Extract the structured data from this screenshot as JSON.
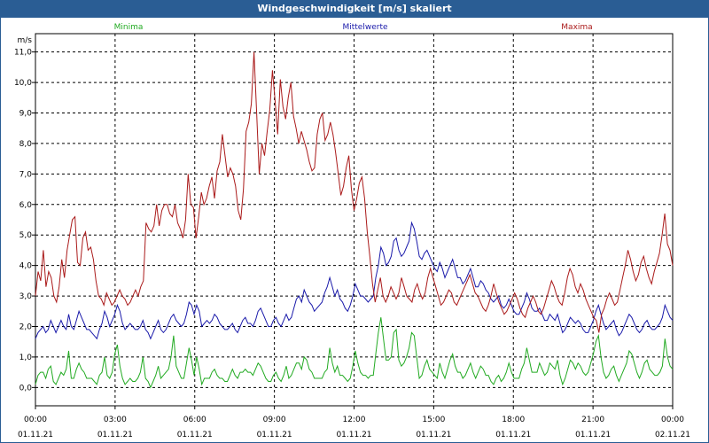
{
  "window": {
    "title": "Windgeschwindigkeit [m/s] skaliert"
  },
  "chart_data": {
    "type": "line",
    "title": "Windgeschwindigkeit [m/s] skaliert",
    "ylabel": "m/s",
    "ylim": [
      -0.6,
      11.6
    ],
    "yticks": [
      "0,0",
      "1,0",
      "2,0",
      "3,0",
      "4,0",
      "5,0",
      "6,0",
      "7,0",
      "8,0",
      "9,0",
      "10,0",
      "11,0"
    ],
    "xticks": [
      {
        "time": "00:00",
        "date": "01.11.21"
      },
      {
        "time": "03:00",
        "date": "01.11.21"
      },
      {
        "time": "06:00",
        "date": "01.11.21"
      },
      {
        "time": "09:00",
        "date": "01.11.21"
      },
      {
        "time": "12:00",
        "date": "01.11.21"
      },
      {
        "time": "15:00",
        "date": "01.11.21"
      },
      {
        "time": "18:00",
        "date": "01.11.21"
      },
      {
        "time": "21:00",
        "date": "01.11.21"
      },
      {
        "time": "00:00",
        "date": "02.11.21"
      }
    ],
    "grid": true,
    "legend_position": "top",
    "series": [
      {
        "name": "Minima",
        "color": "#22aa22",
        "values": [
          0.1,
          0.4,
          0.5,
          0.5,
          0.3,
          0.6,
          0.7,
          0.2,
          0.1,
          0.3,
          0.5,
          0.4,
          0.6,
          1.2,
          0.3,
          0.3,
          0.6,
          0.8,
          0.6,
          0.5,
          0.3,
          0.3,
          0.3,
          0.2,
          0.1,
          0.4,
          0.5,
          1.0,
          0.4,
          0.3,
          0.5,
          1.1,
          1.4,
          0.7,
          0.3,
          0.1,
          0.2,
          0.3,
          0.2,
          0.2,
          0.3,
          0.5,
          1.0,
          0.3,
          0.2,
          0.0,
          0.2,
          0.4,
          0.7,
          0.3,
          0.4,
          0.5,
          0.6,
          1.0,
          1.7,
          0.7,
          0.5,
          0.3,
          0.3,
          0.8,
          1.3,
          0.9,
          0.4,
          1.0,
          0.6,
          0.1,
          0.3,
          0.3,
          0.3,
          0.5,
          0.6,
          0.4,
          0.3,
          0.3,
          0.2,
          0.2,
          0.4,
          0.6,
          0.4,
          0.3,
          0.5,
          0.5,
          0.6,
          0.5,
          0.5,
          0.4,
          0.6,
          0.8,
          0.7,
          0.5,
          0.3,
          0.2,
          0.2,
          0.4,
          0.5,
          0.3,
          0.2,
          0.4,
          0.7,
          0.3,
          0.4,
          0.6,
          0.8,
          0.8,
          0.6,
          1.0,
          0.9,
          0.6,
          0.5,
          0.3,
          0.3,
          0.3,
          0.3,
          0.5,
          0.6,
          1.3,
          0.8,
          0.5,
          0.7,
          0.4,
          0.4,
          0.3,
          0.2,
          0.3,
          0.7,
          1.2,
          0.8,
          0.5,
          0.4,
          0.4,
          0.3,
          0.4,
          0.4,
          1.1,
          1.8,
          2.3,
          1.6,
          0.9,
          0.9,
          1.0,
          1.8,
          1.9,
          0.9,
          0.7,
          0.8,
          1.0,
          1.3,
          1.8,
          1.7,
          1.0,
          0.3,
          0.4,
          0.7,
          0.9,
          0.6,
          0.5,
          0.4,
          0.3,
          0.8,
          0.5,
          0.3,
          0.6,
          0.9,
          1.1,
          0.7,
          0.5,
          0.5,
          0.3,
          0.4,
          0.6,
          0.8,
          0.5,
          0.3,
          0.5,
          0.7,
          0.6,
          0.4,
          0.4,
          0.2,
          0.1,
          0.3,
          0.4,
          0.2,
          0.3,
          0.5,
          0.8,
          0.5,
          0.3,
          0.3,
          0.3,
          0.6,
          0.8,
          1.3,
          0.9,
          0.5,
          0.5,
          0.5,
          0.8,
          0.6,
          0.4,
          0.5,
          0.8,
          0.7,
          0.6,
          0.9,
          0.4,
          0.1,
          0.3,
          0.6,
          0.9,
          0.8,
          0.6,
          0.8,
          0.7,
          0.5,
          0.4,
          0.5,
          0.8,
          1.1,
          1.5,
          1.7,
          1.0,
          0.5,
          0.3,
          0.4,
          0.6,
          0.7,
          0.4,
          0.2,
          0.4,
          0.6,
          0.8,
          1.2,
          1.1,
          0.8,
          0.5,
          0.3,
          0.5,
          0.8,
          0.9,
          0.6,
          0.5,
          0.4,
          0.4,
          0.5,
          0.7,
          1.6,
          1.0,
          0.7,
          0.6
        ]
      },
      {
        "name": "Mittelwerte",
        "color": "#1a1aaa",
        "values": [
          1.6,
          1.8,
          1.9,
          2.0,
          1.8,
          1.9,
          2.2,
          2.0,
          1.8,
          2.0,
          2.2,
          2.0,
          1.9,
          2.4,
          2.0,
          1.9,
          2.2,
          2.5,
          2.3,
          2.1,
          1.9,
          1.9,
          1.8,
          1.7,
          1.6,
          1.9,
          2.1,
          2.5,
          2.3,
          2.0,
          2.2,
          2.4,
          2.7,
          2.5,
          2.1,
          1.9,
          2.0,
          2.1,
          2.0,
          1.9,
          1.9,
          2.0,
          2.2,
          1.9,
          1.8,
          1.6,
          1.8,
          2.0,
          2.2,
          1.9,
          1.8,
          1.9,
          2.1,
          2.3,
          2.4,
          2.2,
          2.1,
          2.0,
          2.1,
          2.4,
          2.8,
          2.7,
          2.4,
          2.7,
          2.5,
          2.0,
          2.1,
          2.2,
          2.1,
          2.2,
          2.4,
          2.3,
          2.1,
          2.0,
          1.9,
          1.9,
          2.0,
          2.1,
          1.9,
          1.8,
          2.0,
          2.2,
          2.3,
          2.1,
          2.1,
          2.0,
          2.2,
          2.5,
          2.6,
          2.4,
          2.2,
          2.0,
          2.0,
          2.2,
          2.3,
          2.1,
          2.0,
          2.2,
          2.4,
          2.2,
          2.3,
          2.6,
          2.9,
          3.0,
          2.8,
          3.2,
          3.0,
          2.8,
          2.7,
          2.5,
          2.6,
          2.7,
          2.8,
          3.1,
          3.3,
          3.6,
          3.3,
          3.0,
          3.2,
          2.9,
          2.8,
          2.6,
          2.5,
          2.7,
          3.0,
          3.4,
          3.2,
          3.0,
          3.0,
          2.9,
          2.8,
          2.9,
          3.0,
          3.6,
          4.0,
          4.6,
          4.4,
          4.0,
          4.1,
          4.3,
          4.8,
          4.9,
          4.5,
          4.3,
          4.4,
          4.6,
          4.8,
          5.4,
          5.2,
          4.8,
          4.3,
          4.2,
          4.4,
          4.5,
          4.3,
          4.1,
          3.9,
          3.8,
          4.1,
          3.9,
          3.6,
          3.8,
          4.0,
          4.2,
          3.9,
          3.6,
          3.6,
          3.4,
          3.5,
          3.7,
          3.9,
          3.6,
          3.3,
          3.3,
          3.5,
          3.4,
          3.2,
          3.1,
          2.9,
          2.8,
          2.9,
          3.0,
          2.7,
          2.6,
          2.7,
          2.9,
          2.7,
          2.5,
          2.4,
          2.4,
          2.6,
          2.8,
          3.1,
          2.9,
          2.6,
          2.5,
          2.5,
          2.6,
          2.4,
          2.2,
          2.2,
          2.4,
          2.3,
          2.2,
          2.4,
          2.1,
          1.8,
          1.9,
          2.1,
          2.3,
          2.2,
          2.1,
          2.2,
          2.1,
          1.9,
          1.8,
          1.8,
          2.0,
          2.2,
          2.5,
          2.7,
          2.4,
          2.1,
          1.9,
          2.0,
          2.1,
          2.2,
          1.9,
          1.7,
          1.8,
          2.0,
          2.2,
          2.4,
          2.3,
          2.1,
          1.9,
          1.8,
          1.9,
          2.1,
          2.2,
          2.0,
          1.9,
          1.9,
          2.0,
          2.1,
          2.3,
          2.7,
          2.5,
          2.3,
          2.2
        ]
      },
      {
        "name": "Maxima",
        "color": "#aa1a1a",
        "values": [
          3.0,
          3.8,
          3.5,
          4.5,
          3.3,
          3.8,
          3.6,
          3.0,
          2.8,
          3.3,
          4.2,
          3.6,
          4.5,
          5.0,
          5.5,
          5.6,
          4.1,
          4.0,
          4.9,
          5.1,
          4.5,
          4.6,
          4.2,
          3.5,
          3.0,
          2.9,
          2.7,
          3.1,
          2.9,
          2.7,
          2.8,
          3.0,
          3.2,
          3.0,
          2.9,
          2.7,
          2.8,
          3.0,
          3.2,
          3.0,
          3.3,
          3.5,
          5.4,
          5.2,
          5.1,
          5.3,
          6.0,
          5.3,
          5.8,
          6.0,
          6.0,
          5.7,
          5.6,
          6.0,
          5.4,
          5.2,
          4.9,
          5.5,
          7.0,
          6.0,
          5.9,
          4.9,
          5.6,
          6.4,
          6.0,
          6.2,
          6.6,
          6.9,
          6.2,
          7.1,
          7.4,
          8.3,
          7.6,
          6.9,
          7.2,
          7.0,
          6.6,
          5.8,
          5.5,
          6.5,
          8.4,
          8.7,
          9.3,
          11.0,
          9.0,
          7.0,
          8.0,
          7.6,
          8.4,
          9.1,
          10.4,
          9.4,
          8.3,
          10.1,
          9.2,
          8.8,
          9.5,
          10.0,
          8.9,
          8.5,
          8.0,
          8.4,
          8.1,
          7.8,
          7.4,
          7.1,
          7.2,
          8.3,
          8.8,
          9.0,
          8.1,
          8.3,
          8.7,
          8.3,
          7.7,
          7.0,
          6.3,
          6.6,
          7.2,
          7.6,
          6.5,
          5.8,
          6.2,
          6.7,
          6.9,
          6.2,
          5.1,
          4.3,
          3.4,
          2.8,
          3.2,
          3.6,
          3.0,
          2.8,
          3.0,
          3.3,
          3.1,
          2.9,
          3.1,
          3.6,
          3.3,
          3.0,
          2.9,
          2.8,
          3.2,
          3.4,
          3.1,
          2.9,
          3.1,
          3.6,
          3.9,
          3.6,
          3.3,
          3.0,
          2.7,
          2.8,
          3.0,
          3.2,
          3.1,
          2.8,
          2.7,
          2.9,
          3.1,
          3.3,
          3.5,
          3.7,
          3.4,
          3.1,
          3.0,
          2.8,
          2.6,
          2.5,
          2.7,
          3.0,
          3.4,
          3.1,
          2.8,
          2.6,
          2.4,
          2.5,
          2.7,
          2.9,
          3.1,
          2.9,
          2.6,
          2.4,
          2.3,
          2.6,
          2.8,
          3.0,
          2.8,
          2.5,
          2.4,
          2.6,
          2.9,
          3.2,
          3.5,
          3.3,
          3.0,
          2.8,
          2.7,
          3.1,
          3.6,
          3.9,
          3.7,
          3.3,
          3.1,
          3.4,
          3.2,
          2.9,
          2.7,
          2.5,
          2.3,
          2.2,
          1.8,
          2.4,
          2.6,
          2.9,
          3.1,
          2.9,
          2.7,
          2.8,
          3.2,
          3.6,
          4.0,
          4.5,
          4.2,
          3.8,
          3.5,
          3.7,
          4.1,
          4.3,
          3.9,
          3.6,
          3.4,
          3.8,
          4.1,
          4.4,
          5.0,
          5.7,
          4.7,
          4.5,
          4.0
        ]
      }
    ]
  }
}
